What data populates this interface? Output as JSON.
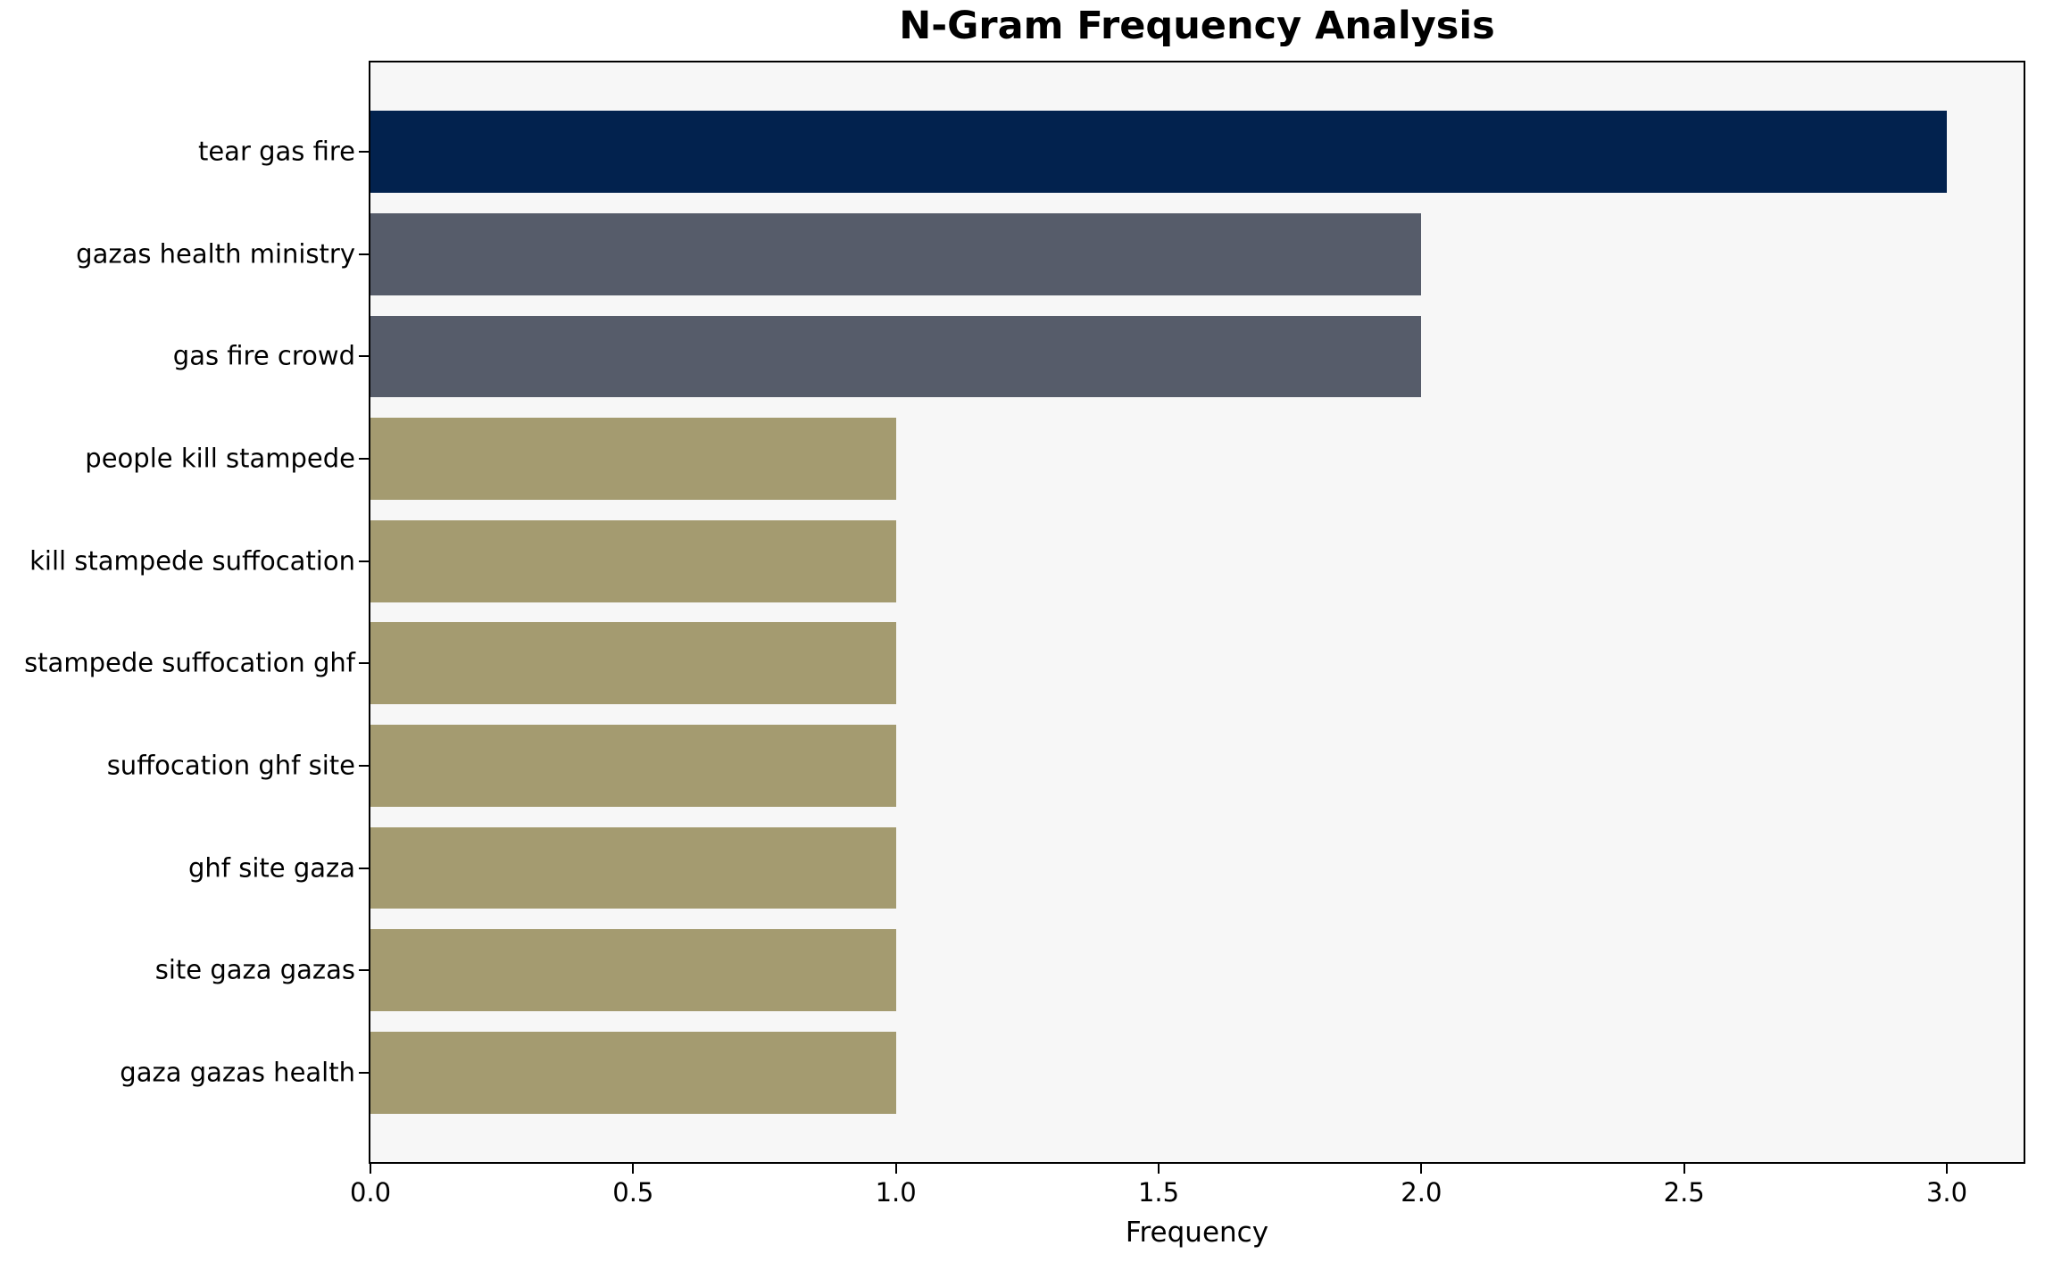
{
  "chart": {
    "title": "N-Gram Frequency Analysis",
    "xlabel": "Frequency"
  },
  "chart_data": {
    "type": "bar",
    "orientation": "horizontal",
    "title": "N-Gram Frequency Analysis",
    "xlabel": "Frequency",
    "ylabel": "",
    "categories": [
      "tear gas fire",
      "gazas health ministry",
      "gas fire crowd",
      "people kill stampede",
      "kill stampede suffocation",
      "stampede suffocation ghf",
      "suffocation ghf site",
      "ghf site gaza",
      "site gaza gazas",
      "gaza gazas health"
    ],
    "values": [
      3,
      2,
      2,
      1,
      1,
      1,
      1,
      1,
      1,
      1
    ],
    "bar_colors": [
      "#02224e",
      "#565c6a",
      "#565c6a",
      "#a49b70",
      "#a49b70",
      "#a49b70",
      "#a49b70",
      "#a49b70",
      "#a49b70",
      "#a49b70"
    ],
    "x_ticks": [
      0.0,
      0.5,
      1.0,
      1.5,
      2.0,
      2.5,
      3.0
    ],
    "xlim": [
      0,
      3.146
    ],
    "grid": false,
    "legend": null,
    "plot_background": "#f7f7f7",
    "figure_background": "#ffffff",
    "spine_color": "#000000"
  }
}
